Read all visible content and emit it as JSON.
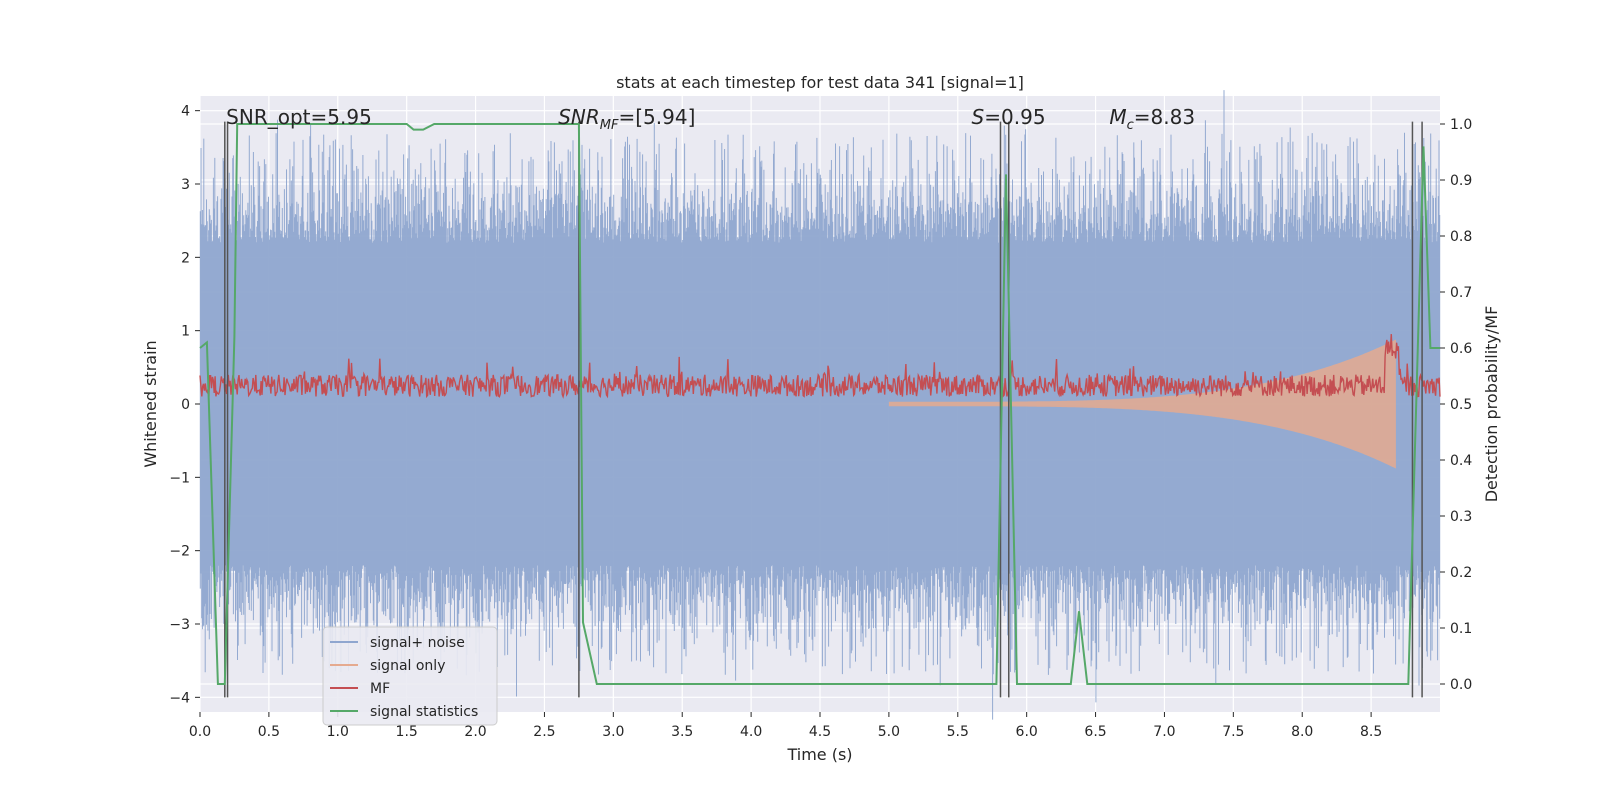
{
  "chart_data": {
    "type": "line",
    "title": "stats at each timestep for test data 341 [signal=1]",
    "xlabel": "Time (s)",
    "ylabel": "Whitened strain",
    "ylabel_right": "Detection probability/MF",
    "xlim": [
      0.0,
      9.0
    ],
    "ylim": [
      -4.2,
      4.2
    ],
    "ylim_right": [
      -0.05,
      1.05
    ],
    "x_ticks": [
      "0.0",
      "0.5",
      "1.0",
      "1.5",
      "2.0",
      "2.5",
      "3.0",
      "3.5",
      "4.0",
      "4.5",
      "5.0",
      "5.5",
      "6.0",
      "6.5",
      "7.0",
      "7.5",
      "8.0",
      "8.5"
    ],
    "y_ticks": [
      "4",
      "3",
      "2",
      "1",
      "0",
      "−1",
      "−2",
      "−3",
      "−4"
    ],
    "y_right_ticks": [
      "1.0",
      "0.9",
      "0.8",
      "0.7",
      "0.6",
      "0.5",
      "0.4",
      "0.3",
      "0.2",
      "0.1",
      "0.0"
    ],
    "grid": true,
    "annotations": [
      {
        "text": "SNR_opt=5.95",
        "x": 0.19,
        "y": 4.3
      },
      {
        "text": "SNR",
        "sub": "MF",
        "suffix": "=[5.94]",
        "x": 2.6,
        "y": 4.3
      },
      {
        "text": "S",
        "suffix": "=0.95",
        "x": 5.6,
        "y": 4.3
      },
      {
        "text": "M",
        "sub": "c",
        "suffix": "=8.83",
        "x": 6.6,
        "y": 4.3
      }
    ],
    "legend": {
      "placement": "lower-left",
      "entries": [
        "signal+ noise",
        "signal only",
        "MF",
        "signal statistics"
      ]
    },
    "colors": {
      "noise": "#8fa6cf",
      "signal": "#e5aa8f",
      "mf": "#c44e52",
      "stat": "#55a868",
      "vline": "#555555",
      "bg": "#eaeaf2"
    },
    "series": [
      {
        "name": "signal+ noise",
        "type": "noise-band",
        "envelope_abs": 3.3,
        "core_abs": 2.2
      },
      {
        "name": "signal only",
        "type": "chirp",
        "t_start": 5.0,
        "t_merge": 8.68,
        "peak": 0.85
      },
      {
        "name": "MF",
        "type": "band",
        "mean": 0.25,
        "amp": 0.3
      },
      {
        "name": "signal statistics",
        "type": "line",
        "x": [
          0.0,
          0.05,
          0.13,
          0.18,
          0.25,
          0.27,
          1.5,
          1.55,
          1.62,
          1.7,
          2.6,
          2.75,
          2.78,
          2.88,
          5.65,
          5.78,
          5.85,
          5.93,
          6.32,
          6.38,
          6.44,
          8.77,
          8.88,
          8.93,
          9.0
        ],
        "y": [
          0.6,
          0.61,
          0.0,
          0.0,
          0.62,
          1.0,
          1.0,
          0.99,
          0.99,
          1.0,
          1.0,
          1.0,
          0.11,
          0.0,
          0.0,
          0.0,
          0.91,
          0.0,
          0.0,
          0.13,
          0.0,
          0.0,
          0.96,
          0.6,
          0.6
        ]
      }
    ],
    "vlines": [
      0.18,
      0.2,
      2.75,
      5.81,
      5.87,
      8.8,
      8.87
    ]
  }
}
